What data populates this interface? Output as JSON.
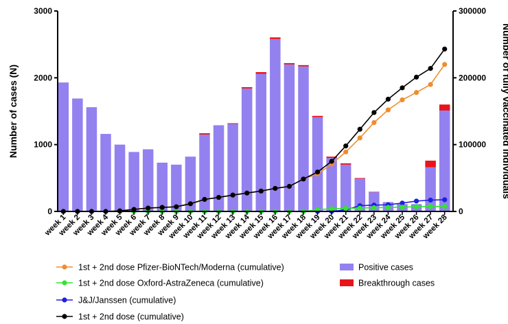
{
  "chart_data": {
    "type": "bar",
    "categories": [
      "week 1",
      "week 2",
      "week 3",
      "week 4",
      "week 5",
      "week 6",
      "week 7",
      "week 8",
      "week 9",
      "week 10",
      "week 11",
      "week 12",
      "week 13",
      "week 14",
      "week 15",
      "week 16",
      "week 17",
      "week 18",
      "week 19",
      "week 20",
      "week 21",
      "week 22",
      "week 23",
      "week 24",
      "week 25",
      "week 26",
      "week 27",
      "week 28"
    ],
    "bar_series": [
      {
        "name": "Positive cases",
        "color": "#9381f0",
        "axis": "left",
        "values": [
          1930,
          1690,
          1560,
          1160,
          1000,
          890,
          930,
          730,
          700,
          820,
          1150,
          1290,
          1310,
          1840,
          2060,
          2580,
          2200,
          2170,
          1410,
          800,
          700,
          490,
          290,
          140,
          110,
          110,
          660,
          1510
        ]
      },
      {
        "name": "Breakthrough cases",
        "color": "#e8141b",
        "axis": "left",
        "values": [
          0,
          0,
          0,
          0,
          0,
          0,
          0,
          0,
          0,
          0,
          20,
          0,
          10,
          20,
          25,
          25,
          20,
          20,
          20,
          20,
          20,
          10,
          5,
          0,
          0,
          0,
          100,
          90
        ]
      }
    ],
    "line_series": [
      {
        "name": "1st + 2nd dose Pfizer-BioNTech/Moderna (cumulative)",
        "color": "#ef8d2e",
        "axis": "right",
        "values": [
          0,
          0,
          0,
          0,
          800,
          3000,
          5000,
          6000,
          7000,
          11500,
          18000,
          21000,
          24500,
          27500,
          30500,
          34500,
          37500,
          48500,
          56000,
          71000,
          89000,
          110000,
          133000,
          152000,
          167000,
          178000,
          190000,
          220000
        ]
      },
      {
        "name": "1st + 2nd dose Oxford-AstraZeneca (cumulative)",
        "color": "#2fe52f",
        "axis": "right",
        "values": [
          0,
          0,
          0,
          0,
          0,
          0,
          0,
          0,
          0,
          0,
          0,
          0,
          0,
          0,
          0,
          0,
          0,
          0,
          2500,
          4000,
          4500,
          5000,
          5500,
          6000,
          6500,
          7000,
          7500,
          7500
        ]
      },
      {
        "name": "J&J/Janssen (cumulative)",
        "color": "#1f1fe0",
        "axis": "right",
        "values": [
          0,
          0,
          0,
          0,
          0,
          0,
          0,
          0,
          0,
          0,
          0,
          0,
          0,
          0,
          0,
          0,
          0,
          0,
          0,
          0,
          2500,
          8500,
          9500,
          10000,
          12500,
          15500,
          17000,
          17500
        ]
      },
      {
        "name": "1st + 2nd dose (cumulative)",
        "color": "#000000",
        "axis": "right",
        "values": [
          0,
          0,
          0,
          0,
          800,
          3000,
          5000,
          6000,
          7000,
          11500,
          18000,
          21000,
          24500,
          27500,
          30500,
          34500,
          37500,
          48500,
          59000,
          75000,
          98000,
          123000,
          148000,
          168000,
          185000,
          201000,
          214000,
          243000
        ]
      }
    ],
    "ylabel": "Number of cases (N)",
    "ylabel_right": "Number of fully vaccinated individuals",
    "ylim": [
      0,
      3000
    ],
    "ylim_right": [
      0,
      300000
    ],
    "yticks": [
      "0",
      "1000",
      "2000",
      "3000"
    ],
    "yticks_right": [
      "0",
      "100000",
      "200000",
      "300000"
    ],
    "legend_placement": "bottom",
    "grid": false
  }
}
